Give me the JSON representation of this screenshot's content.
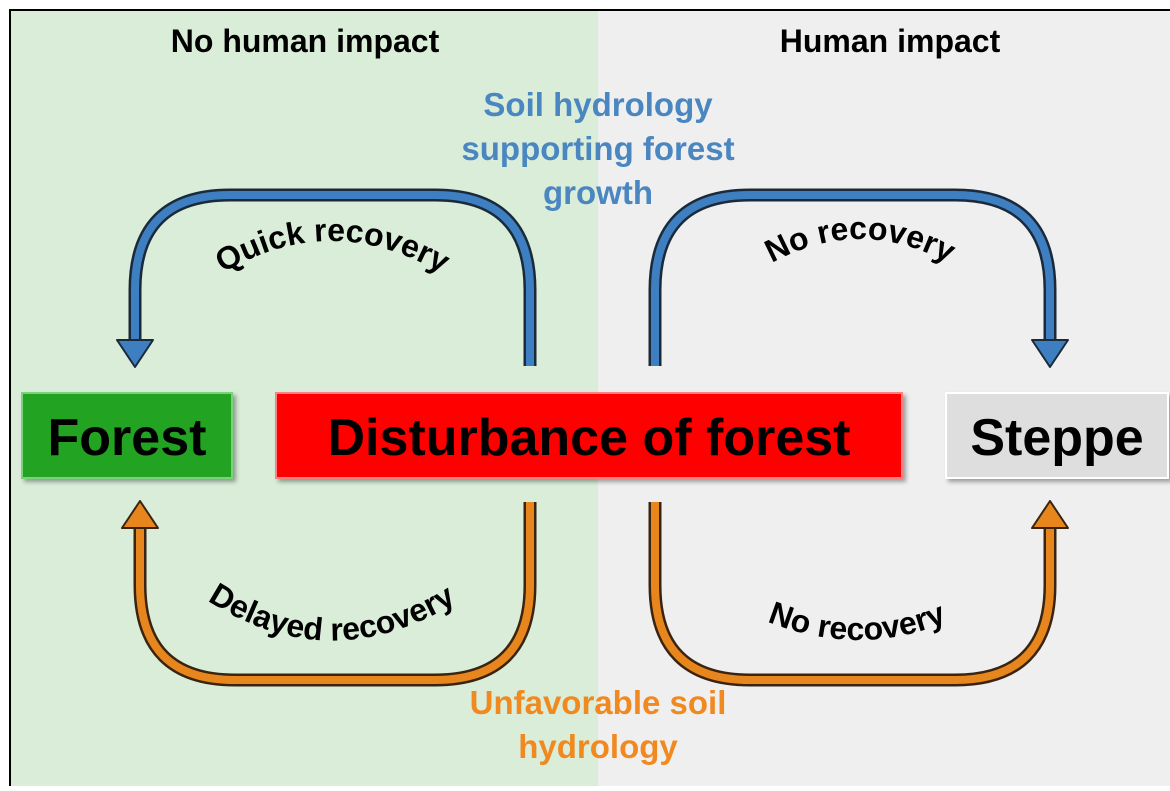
{
  "headers": {
    "left": "No human impact",
    "right": "Human impact"
  },
  "annotations": {
    "top": [
      "Soil hydrology",
      "supporting forest",
      "growth"
    ],
    "bottom": [
      "Unfavorable soil",
      "hydrology"
    ]
  },
  "nodes": [
    {
      "label": "Forest"
    },
    {
      "label": "Disturbance of forest"
    },
    {
      "label": "Steppe"
    }
  ],
  "edges": [
    {
      "label": "Quick recovery"
    },
    {
      "label": "No recovery"
    },
    {
      "label": "Delayed recovery"
    },
    {
      "label": "No recovery"
    }
  ]
}
